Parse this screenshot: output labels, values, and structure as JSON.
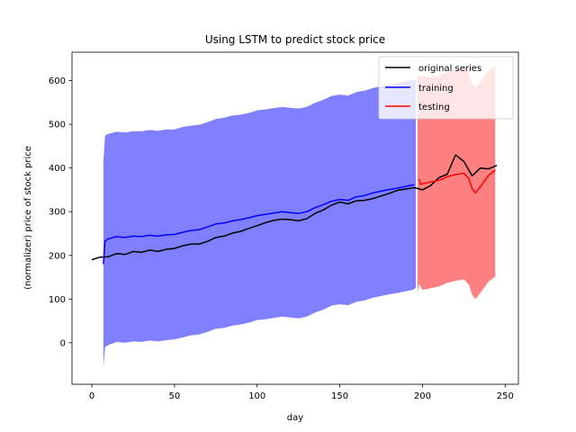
{
  "chart_data": {
    "type": "line",
    "title": "Using LSTM to predict stock price",
    "xlabel": "day",
    "ylabel": "(normalizer) price of stock price",
    "xlim": [
      -12,
      258
    ],
    "ylim": [
      -95,
      665
    ],
    "xticks": [
      0,
      50,
      100,
      150,
      200,
      250
    ],
    "yticks": [
      0,
      100,
      200,
      300,
      400,
      500,
      600
    ],
    "grid": false,
    "legend": {
      "placement": "top-right",
      "entries": [
        {
          "label": "original series",
          "color": "#000000"
        },
        {
          "label": "training",
          "color": "#0000ff"
        },
        {
          "label": "testing",
          "color": "#ff0000"
        }
      ]
    },
    "series": [
      {
        "name": "original series",
        "color": "#000000",
        "x": [
          0,
          5,
          10,
          15,
          20,
          25,
          30,
          35,
          40,
          45,
          50,
          55,
          60,
          65,
          70,
          75,
          80,
          85,
          90,
          95,
          100,
          105,
          110,
          115,
          120,
          125,
          130,
          135,
          140,
          145,
          150,
          155,
          160,
          165,
          170,
          175,
          180,
          185,
          190,
          195,
          200,
          205,
          210,
          215,
          220,
          225,
          230,
          235,
          240,
          245
        ],
        "y": [
          190,
          196,
          197,
          204,
          202,
          209,
          207,
          212,
          209,
          214,
          216,
          222,
          226,
          226,
          232,
          241,
          244,
          251,
          255,
          262,
          268,
          275,
          280,
          283,
          282,
          279,
          284,
          296,
          304,
          315,
          322,
          318,
          325,
          326,
          330,
          336,
          342,
          349,
          352,
          355,
          350,
          360,
          378,
          386,
          430,
          415,
          382,
          400,
          398,
          406
        ]
      },
      {
        "name": "training",
        "color": "#0000ff",
        "x": [
          7,
          8,
          10,
          15,
          20,
          25,
          30,
          35,
          40,
          45,
          50,
          55,
          60,
          65,
          70,
          75,
          80,
          85,
          90,
          95,
          100,
          105,
          110,
          115,
          120,
          125,
          130,
          135,
          140,
          145,
          150,
          155,
          160,
          165,
          170,
          175,
          180,
          185,
          190,
          195
        ],
        "y": [
          180,
          233,
          238,
          243,
          241,
          244,
          243,
          246,
          244,
          247,
          248,
          253,
          257,
          259,
          265,
          272,
          274,
          279,
          282,
          286,
          291,
          294,
          297,
          300,
          298,
          296,
          300,
          309,
          316,
          324,
          328,
          326,
          334,
          337,
          343,
          347,
          351,
          354,
          358,
          362
        ]
      },
      {
        "name": "testing",
        "color": "#ff0000",
        "x": [
          198,
          199,
          200,
          205,
          210,
          215,
          220,
          225,
          228,
          230,
          232,
          235,
          240,
          244
        ],
        "y": [
          375,
          362,
          364,
          368,
          372,
          380,
          385,
          388,
          376,
          353,
          343,
          357,
          383,
          395
        ]
      }
    ],
    "bands": [
      {
        "color": "#8080ff",
        "x": [
          7,
          8,
          10,
          15,
          20,
          25,
          30,
          35,
          40,
          45,
          50,
          55,
          60,
          65,
          70,
          75,
          80,
          85,
          90,
          95,
          100,
          105,
          110,
          115,
          120,
          125,
          130,
          135,
          140,
          145,
          150,
          155,
          160,
          165,
          170,
          175,
          180,
          185,
          190,
          195,
          196
        ],
        "upper": [
          415,
          474,
          478,
          483,
          481,
          484,
          484,
          487,
          485,
          488,
          488,
          494,
          497,
          499,
          505,
          512,
          515,
          520,
          522,
          526,
          532,
          534,
          537,
          540,
          538,
          536,
          540,
          549,
          556,
          565,
          568,
          566,
          574,
          577,
          583,
          587,
          591,
          594,
          598,
          602,
          604
        ],
        "lower": [
          -55,
          -10,
          -5,
          2,
          0,
          3,
          2,
          5,
          3,
          6,
          8,
          12,
          17,
          19,
          25,
          32,
          34,
          39,
          42,
          46,
          52,
          54,
          57,
          60,
          58,
          56,
          60,
          69,
          76,
          85,
          88,
          86,
          94,
          97,
          103,
          107,
          111,
          114,
          118,
          122,
          128
        ]
      },
      {
        "color": "#ff8080",
        "x": [
          197,
          198,
          200,
          205,
          210,
          215,
          220,
          225,
          228,
          230,
          232,
          235,
          240,
          244
        ],
        "upper": [
          610,
          613,
          610,
          608,
          612,
          620,
          625,
          628,
          616,
          593,
          583,
          597,
          623,
          635
        ],
        "lower": [
          115,
          135,
          121,
          125,
          129,
          137,
          142,
          145,
          133,
          110,
          100,
          114,
          140,
          152
        ]
      }
    ]
  }
}
